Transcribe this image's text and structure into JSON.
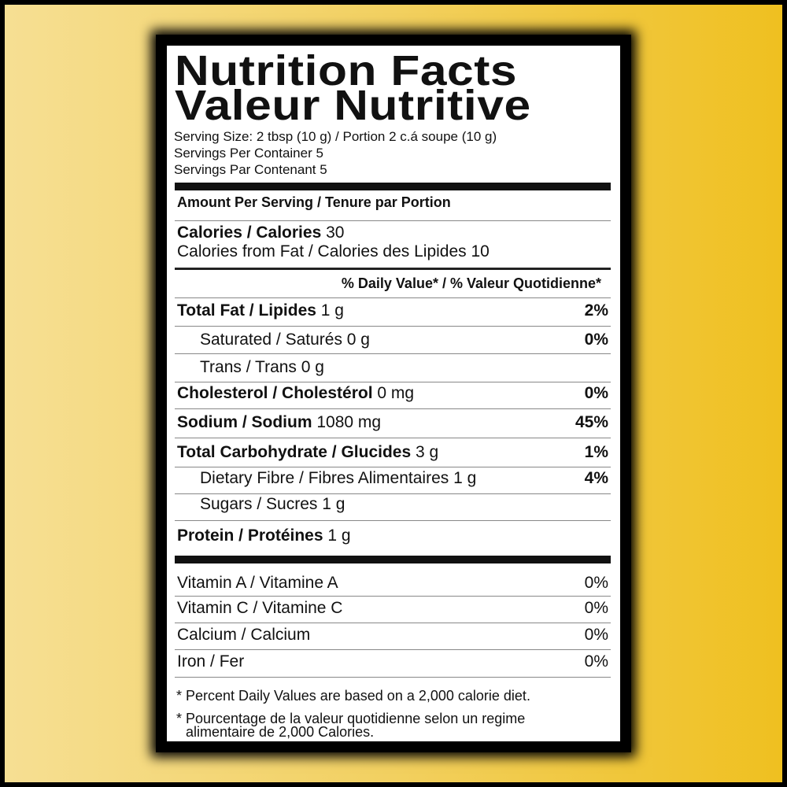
{
  "title": {
    "line1": "Nutrition Facts",
    "line2": "Valeur Nutritive"
  },
  "serving": {
    "size": "Serving Size: 2 tbsp (10 g) / Portion 2 c.á soupe (10 g)",
    "per_container": "Servings Per Container 5",
    "par_contenant": "Servings Par Contenant 5"
  },
  "amount_header": "Amount Per Serving / Tenure par Portion",
  "calories": {
    "label": "Calories / Calories",
    "value": "30",
    "from_fat": "Calories from Fat / Calories des Lipides 10"
  },
  "dv_header": "% Daily Value* / % Valeur Quotidienne*",
  "nutrients": [
    {
      "label": "Total Fat / Lipides",
      "amount": "1 g",
      "dv": "2%"
    },
    {
      "label": "Saturated / Saturés",
      "amount": "0 g",
      "dv": "0%"
    },
    {
      "label": "Trans / Trans",
      "amount": "0 g",
      "dv": ""
    },
    {
      "label": "Cholesterol / Cholestérol",
      "amount": "0 mg",
      "dv": "0%"
    },
    {
      "label": "Sodium / Sodium",
      "amount": "1080 mg",
      "dv": "45%"
    },
    {
      "label": "Total Carbohydrate / Glucides",
      "amount": "3 g",
      "dv": "1%"
    },
    {
      "label": "Dietary Fibre / Fibres Alimentaires",
      "amount": "1 g",
      "dv": "4%"
    },
    {
      "label": "Sugars / Sucres",
      "amount": "1 g",
      "dv": ""
    },
    {
      "label": "Protein / Protéines",
      "amount": "1 g",
      "dv": ""
    }
  ],
  "vitamins": [
    {
      "label": "Vitamin A / Vitamine A",
      "dv": "0%"
    },
    {
      "label": "Vitamin C / Vitamine C",
      "dv": "0%"
    },
    {
      "label": "Calcium / Calcium",
      "dv": "0%"
    },
    {
      "label": "Iron / Fer",
      "dv": "0%"
    }
  ],
  "footnotes": {
    "en": "* Percent Daily Values are based on a 2,000 calorie diet.",
    "fr1": "* Pourcentage de la valeur quotidienne selon un regime",
    "fr2": "alimentaire de 2,000 Calories."
  }
}
